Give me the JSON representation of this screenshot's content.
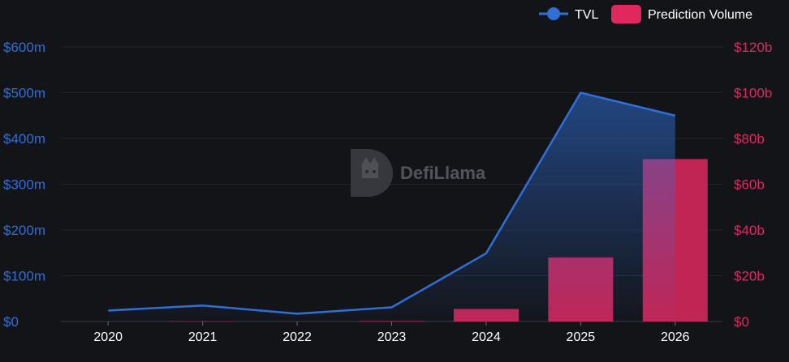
{
  "chart_data": {
    "type": "bar+line",
    "categories": [
      "2020",
      "2021",
      "2022",
      "2023",
      "2024",
      "2025",
      "2026"
    ],
    "series": [
      {
        "name": "TVL",
        "kind": "line",
        "axis": "left",
        "color": "#2f6fd6",
        "values": [
          24,
          35,
          17,
          31,
          149,
          500,
          450
        ]
      },
      {
        "name": "Prediction Volume",
        "kind": "bar",
        "axis": "right",
        "color": "#e0285f",
        "values": [
          0,
          0.1,
          0,
          0.2,
          5.5,
          28,
          71
        ]
      }
    ],
    "left_axis": {
      "ylim": [
        0,
        600
      ],
      "ticks": [
        "$0",
        "$100m",
        "$200m",
        "$300m",
        "$400m",
        "$500m",
        "$600m"
      ]
    },
    "right_axis": {
      "ylim": [
        0,
        120
      ],
      "ticks": [
        "$0",
        "$20b",
        "$40b",
        "$60b",
        "$80b",
        "$100b",
        "$120b"
      ]
    },
    "grid": true,
    "legend_position": "top-right"
  },
  "watermark": {
    "text": "DefiLlama"
  }
}
